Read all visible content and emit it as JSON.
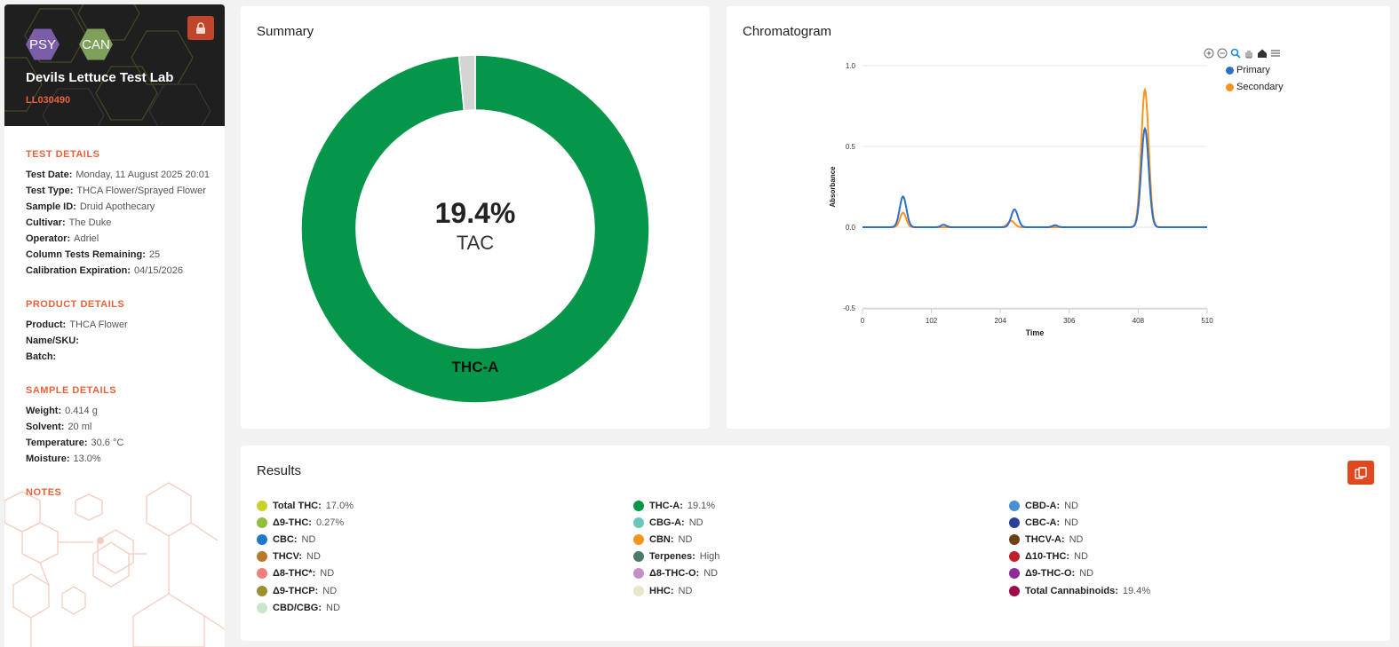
{
  "sidebar": {
    "badges": {
      "psy": "PSY",
      "can": "CAN"
    },
    "lab_name": "Devils Lettuce Test Lab",
    "lab_id": "LL030490",
    "test_details": {
      "title": "TEST DETAILS",
      "rows": [
        {
          "label": "Test Date:",
          "value": "Monday, 11 August 2025 20:01"
        },
        {
          "label": "Test Type:",
          "value": "THCA Flower/Sprayed Flower"
        },
        {
          "label": "Sample ID:",
          "value": "Druid Apothecary"
        },
        {
          "label": "Cultivar:",
          "value": "The Duke"
        },
        {
          "label": "Operator:",
          "value": "Adriel"
        },
        {
          "label": "Column Tests Remaining:",
          "value": "25"
        },
        {
          "label": "Calibration Expiration:",
          "value": "04/15/2026"
        }
      ]
    },
    "product_details": {
      "title": "PRODUCT DETAILS",
      "rows": [
        {
          "label": "Product:",
          "value": "THCA Flower"
        },
        {
          "label": "Name/SKU:",
          "value": ""
        },
        {
          "label": "Batch:",
          "value": ""
        }
      ]
    },
    "sample_details": {
      "title": "SAMPLE DETAILS",
      "rows": [
        {
          "label": "Weight:",
          "value": "0.414 g"
        },
        {
          "label": "Solvent:",
          "value": "20 ml"
        },
        {
          "label": "Temperature:",
          "value": "30.6 °C"
        },
        {
          "label": "Moisture:",
          "value": "13.0%"
        }
      ]
    },
    "notes_title": "NOTES"
  },
  "summary": {
    "title": "Summary",
    "center_value": "19.4%",
    "center_label": "TAC",
    "slice_label": "THC-A",
    "slices": [
      {
        "name": "THC-A",
        "fraction": 0.985,
        "color": "#05964a"
      },
      {
        "name": "other",
        "fraction": 0.015,
        "color": "#d4d4d4"
      }
    ]
  },
  "chromatogram": {
    "title": "Chromatogram",
    "chart_data": {
      "type": "line",
      "xlabel": "Time",
      "ylabel": "Absorbance",
      "xlim": [
        0,
        510
      ],
      "ylim": [
        -0.5,
        1.0
      ],
      "x_ticks": [
        "0",
        "102",
        "204",
        "306",
        "408",
        "510"
      ],
      "y_ticks": [
        "1.0",
        "0.5",
        "0.0",
        "-0.5"
      ],
      "legend_position": "top-right",
      "series": [
        {
          "name": "Primary",
          "color": "#2e6fc4",
          "peaks": [
            [
              60,
              0.19,
              5
            ],
            [
              120,
              0.015,
              4
            ],
            [
              225,
              0.11,
              5
            ],
            [
              285,
              0.012,
              4
            ],
            [
              418,
              0.61,
              5.5
            ]
          ]
        },
        {
          "name": "Secondary",
          "color": "#f7941d",
          "peaks": [
            [
              60,
              0.09,
              4.5
            ],
            [
              220,
              0.04,
              5
            ],
            [
              418,
              0.85,
              5.5
            ]
          ]
        }
      ]
    }
  },
  "results": {
    "title": "Results",
    "columns": [
      [
        {
          "label": "Total THC:",
          "value": "17.0%",
          "color": "#c8d22a"
        },
        {
          "label": "Δ9-THC:",
          "value": "0.27%",
          "color": "#8fbf3c"
        },
        {
          "label": "CBC:",
          "value": "ND",
          "color": "#1f78c8"
        },
        {
          "label": "THCV:",
          "value": "ND",
          "color": "#b87a2a"
        },
        {
          "label": "Δ8-THC*:",
          "value": "ND",
          "color": "#f08080"
        },
        {
          "label": "Δ9-THCP:",
          "value": "ND",
          "color": "#9a9030"
        },
        {
          "label": "CBD/CBG:",
          "value": "ND",
          "color": "#c8e6c8"
        }
      ],
      [
        {
          "label": "THC-A:",
          "value": "19.1%",
          "color": "#05964a"
        },
        {
          "label": "CBG-A:",
          "value": "ND",
          "color": "#6cc6c0"
        },
        {
          "label": "CBN:",
          "value": "ND",
          "color": "#f7941d"
        },
        {
          "label": "Terpenes:",
          "value": "High",
          "color": "#4a7a68"
        },
        {
          "label": "Δ8-THC-O:",
          "value": "ND",
          "color": "#c68ec8"
        },
        {
          "label": "HHC:",
          "value": "ND",
          "color": "#ece4cc"
        }
      ],
      [
        {
          "label": "CBD-A:",
          "value": "ND",
          "color": "#4a90d0"
        },
        {
          "label": "CBC-A:",
          "value": "ND",
          "color": "#2a3f9a"
        },
        {
          "label": "THCV-A:",
          "value": "ND",
          "color": "#6e4018"
        },
        {
          "label": "Δ10-THC:",
          "value": "ND",
          "color": "#c0202a"
        },
        {
          "label": "Δ9-THC-O:",
          "value": "ND",
          "color": "#8e2a9a"
        },
        {
          "label": "Total Cannabinoids:",
          "value": "19.4%",
          "color": "#a00a4a"
        }
      ]
    ]
  }
}
